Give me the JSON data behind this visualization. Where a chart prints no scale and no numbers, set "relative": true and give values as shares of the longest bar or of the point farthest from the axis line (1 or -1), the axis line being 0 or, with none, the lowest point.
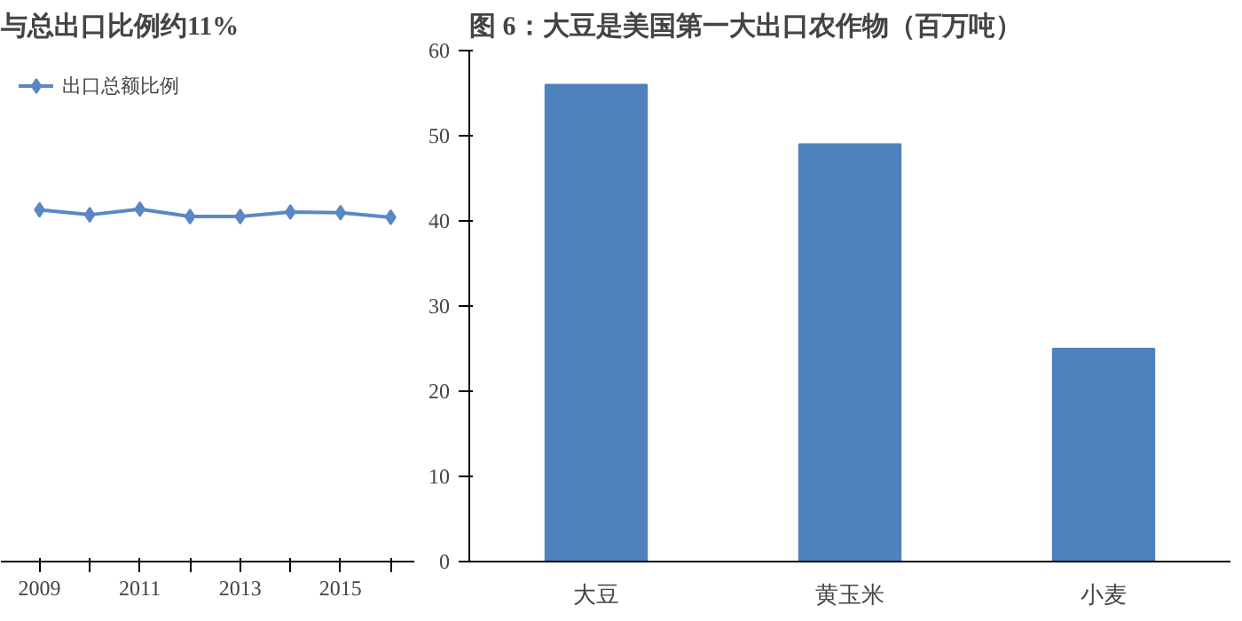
{
  "chart_data": [
    {
      "type": "line",
      "title": "与总出口比例约11%",
      "relative": true,
      "x": [
        2009,
        2010,
        2011,
        2012,
        2013,
        2014,
        2015,
        2016
      ],
      "series": [
        {
          "name": "出口总额比例",
          "color": "#5b87c5",
          "values": [
            0.998,
            0.984,
            1,
            0.979,
            0.979,
            0.992,
            0.99,
            0.977
          ]
        }
      ],
      "xlim": [
        2008.23,
        2016.47
      ],
      "xticks": [
        2009,
        {
          "value": 2010,
          "label": null
        },
        2011,
        {
          "value": 2012,
          "label": null
        },
        2013,
        {
          "value": 2014,
          "label": null
        },
        2015,
        {
          "value": 2016,
          "label": null
        }
      ],
      "marker": "diamond",
      "legend": "top left",
      "grid": false
    },
    {
      "type": "bar",
      "title": "图 6：大豆是美国第一大出口农作物（百万吨）",
      "categories": [
        "大豆",
        "黄玉米",
        "小麦"
      ],
      "values": [
        56,
        49,
        25
      ],
      "color": "#4f81bd",
      "ylim": [
        0,
        60
      ],
      "yticks": [
        0,
        10,
        20,
        30,
        40,
        50,
        60
      ],
      "grid": false
    }
  ]
}
